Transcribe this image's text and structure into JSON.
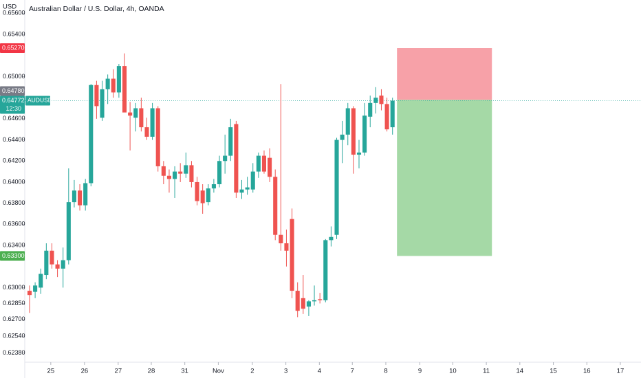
{
  "chart_data": {
    "type": "candlestick",
    "title": "Australian Dollar / U.S. Dollar, 4h, OANDA",
    "y_unit": "USD",
    "symbol": "AUDUSD",
    "countdown": "12:30",
    "up_color": "#26a69a",
    "down_color": "#ef5350",
    "x": [
      0,
      1,
      2,
      3,
      4,
      5,
      6,
      7,
      8,
      9,
      10,
      11,
      12,
      13,
      14,
      15,
      16,
      17,
      18,
      19,
      20,
      21,
      22,
      23,
      24,
      25,
      26,
      27,
      28,
      29,
      30,
      31,
      32,
      33,
      34,
      35,
      36,
      37,
      38,
      39,
      40,
      41,
      42,
      43,
      44,
      45,
      46,
      47,
      48,
      49,
      50,
      51,
      52,
      53,
      54,
      55,
      56,
      57,
      58,
      59,
      60,
      61,
      62,
      63,
      64,
      65
    ],
    "open": [
      0.6297,
      0.6296,
      0.63,
      0.6312,
      0.6335,
      0.6322,
      0.6318,
      0.6326,
      0.6381,
      0.6392,
      0.6378,
      0.6399,
      0.6492,
      0.6461,
      0.6488,
      0.6498,
      0.6485,
      0.651,
      0.6466,
      0.6461,
      0.647,
      0.6452,
      0.6443,
      0.647,
      0.6415,
      0.6406,
      0.6403,
      0.641,
      0.6408,
      0.6416,
      0.64,
      0.6392,
      0.6381,
      0.6394,
      0.6398,
      0.642,
      0.6425,
      0.6455,
      0.639,
      0.6393,
      0.6393,
      0.641,
      0.6425,
      0.6423,
      0.6405,
      0.635,
      0.6342,
      0.6365,
      0.6297,
      0.629,
      0.6282,
      0.6287,
      0.6289,
      0.6288,
      0.6345,
      0.635,
      0.644,
      0.6445,
      0.647,
      0.6426,
      0.6428,
      0.6462,
      0.6475,
      0.6482,
      0.6474,
      0.6452
    ],
    "high": [
      0.6302,
      0.6305,
      0.6318,
      0.6342,
      0.6342,
      0.6326,
      0.6338,
      0.6413,
      0.6402,
      0.6398,
      0.6403,
      0.6493,
      0.6496,
      0.6496,
      0.6502,
      0.6507,
      0.6512,
      0.6522,
      0.6476,
      0.6475,
      0.648,
      0.6461,
      0.6475,
      0.6472,
      0.642,
      0.6412,
      0.6415,
      0.6418,
      0.6428,
      0.642,
      0.6405,
      0.6398,
      0.6398,
      0.6403,
      0.6425,
      0.6445,
      0.646,
      0.6458,
      0.6402,
      0.6405,
      0.6418,
      0.6428,
      0.643,
      0.6432,
      0.6412,
      0.6493,
      0.6355,
      0.6375,
      0.6305,
      0.6312,
      0.6288,
      0.6302,
      0.6295,
      0.6346,
      0.6358,
      0.6442,
      0.6458,
      0.6475,
      0.6472,
      0.644,
      0.6475,
      0.6482,
      0.649,
      0.6488,
      0.648,
      0.648
    ],
    "low": [
      0.6276,
      0.629,
      0.6294,
      0.6308,
      0.6318,
      0.631,
      0.63,
      0.6322,
      0.6376,
      0.6373,
      0.6373,
      0.6396,
      0.646,
      0.6458,
      0.6474,
      0.648,
      0.648,
      0.6468,
      0.643,
      0.6448,
      0.6448,
      0.644,
      0.644,
      0.641,
      0.6398,
      0.639,
      0.6385,
      0.64,
      0.6404,
      0.6395,
      0.6378,
      0.637,
      0.6378,
      0.639,
      0.6395,
      0.6408,
      0.642,
      0.6385,
      0.6384,
      0.6388,
      0.639,
      0.6404,
      0.6408,
      0.64,
      0.6345,
      0.6335,
      0.632,
      0.629,
      0.6272,
      0.6275,
      0.6273,
      0.6283,
      0.6285,
      0.6286,
      0.6339,
      0.6346,
      0.6418,
      0.6435,
      0.6408,
      0.6413,
      0.6425,
      0.6452,
      0.6465,
      0.6468,
      0.6448,
      0.6445
    ],
    "close": [
      0.6293,
      0.6302,
      0.6313,
      0.6335,
      0.6322,
      0.6318,
      0.6326,
      0.6381,
      0.6392,
      0.6378,
      0.6399,
      0.6492,
      0.6472,
      0.6488,
      0.6498,
      0.6485,
      0.651,
      0.6466,
      0.6463,
      0.647,
      0.6452,
      0.6443,
      0.647,
      0.6415,
      0.6406,
      0.6403,
      0.641,
      0.6408,
      0.6416,
      0.64,
      0.6382,
      0.638,
      0.6394,
      0.6398,
      0.642,
      0.6425,
      0.6452,
      0.639,
      0.6393,
      0.6395,
      0.641,
      0.6425,
      0.641,
      0.6405,
      0.635,
      0.6342,
      0.6335,
      0.6297,
      0.6278,
      0.628,
      0.6287,
      0.6288,
      0.6288,
      0.6345,
      0.6348,
      0.644,
      0.6445,
      0.647,
      0.6426,
      0.6428,
      0.6463,
      0.6475,
      0.648,
      0.6474,
      0.645,
      0.64772
    ],
    "xlim": [
      -0.86,
      109.5
    ],
    "xticks": [
      {
        "value": 3.8,
        "label": "25"
      },
      {
        "value": 9.84,
        "label": "26"
      },
      {
        "value": 15.87,
        "label": "27"
      },
      {
        "value": 21.8,
        "label": "28"
      },
      {
        "value": 27.8,
        "label": "31"
      },
      {
        "value": 33.8,
        "label": "Nov"
      },
      {
        "value": 39.9,
        "label": "2"
      },
      {
        "value": 45.9,
        "label": "3"
      },
      {
        "value": 51.9,
        "label": "4"
      },
      {
        "value": 57.8,
        "label": "7"
      },
      {
        "value": 63.8,
        "label": "8"
      },
      {
        "value": 69.9,
        "label": "9"
      },
      {
        "value": 75.8,
        "label": "10"
      },
      {
        "value": 81.8,
        "label": "11"
      },
      {
        "value": 87.8,
        "label": "14"
      },
      {
        "value": 93.8,
        "label": "15"
      },
      {
        "value": 99.8,
        "label": "16"
      },
      {
        "value": 105.8,
        "label": "17"
      }
    ],
    "ylim": [
      0.62293,
      0.65726
    ],
    "yticks": [
      {
        "value": 0.656,
        "label": "0.65600"
      },
      {
        "value": 0.654,
        "label": "0.65400"
      },
      {
        "value": 0.65,
        "label": "0.65000"
      },
      {
        "value": 0.646,
        "label": "0.64600"
      },
      {
        "value": 0.644,
        "label": "0.64400"
      },
      {
        "value": 0.642,
        "label": "0.64200"
      },
      {
        "value": 0.64,
        "label": "0.64000"
      },
      {
        "value": 0.638,
        "label": "0.63800"
      },
      {
        "value": 0.636,
        "label": "0.63600"
      },
      {
        "value": 0.634,
        "label": "0.63400"
      },
      {
        "value": 0.63,
        "label": "0.63000"
      },
      {
        "value": 0.6285,
        "label": "0.62850"
      },
      {
        "value": 0.627,
        "label": "0.62700"
      },
      {
        "value": 0.6254,
        "label": "0.62540"
      },
      {
        "value": 0.6238,
        "label": "0.62380"
      }
    ],
    "current_price": {
      "value": 0.64772,
      "label": "0.64772",
      "color": "#26a69a"
    },
    "price_markers": [
      {
        "value": 0.6527,
        "label": "0.65270",
        "color": "#f23645"
      },
      {
        "value": 0.6478,
        "label": "0.64780",
        "color": "#787b86"
      },
      {
        "value": 0.633,
        "label": "0.63300",
        "color": "#4caf50"
      }
    ],
    "position": {
      "stop": 0.6527,
      "entry": 0.6478,
      "target": 0.633,
      "x_range": [
        65.8,
        82.8
      ],
      "stop_color": "#f7a1a8",
      "target_color": "#a5d9a6"
    }
  }
}
